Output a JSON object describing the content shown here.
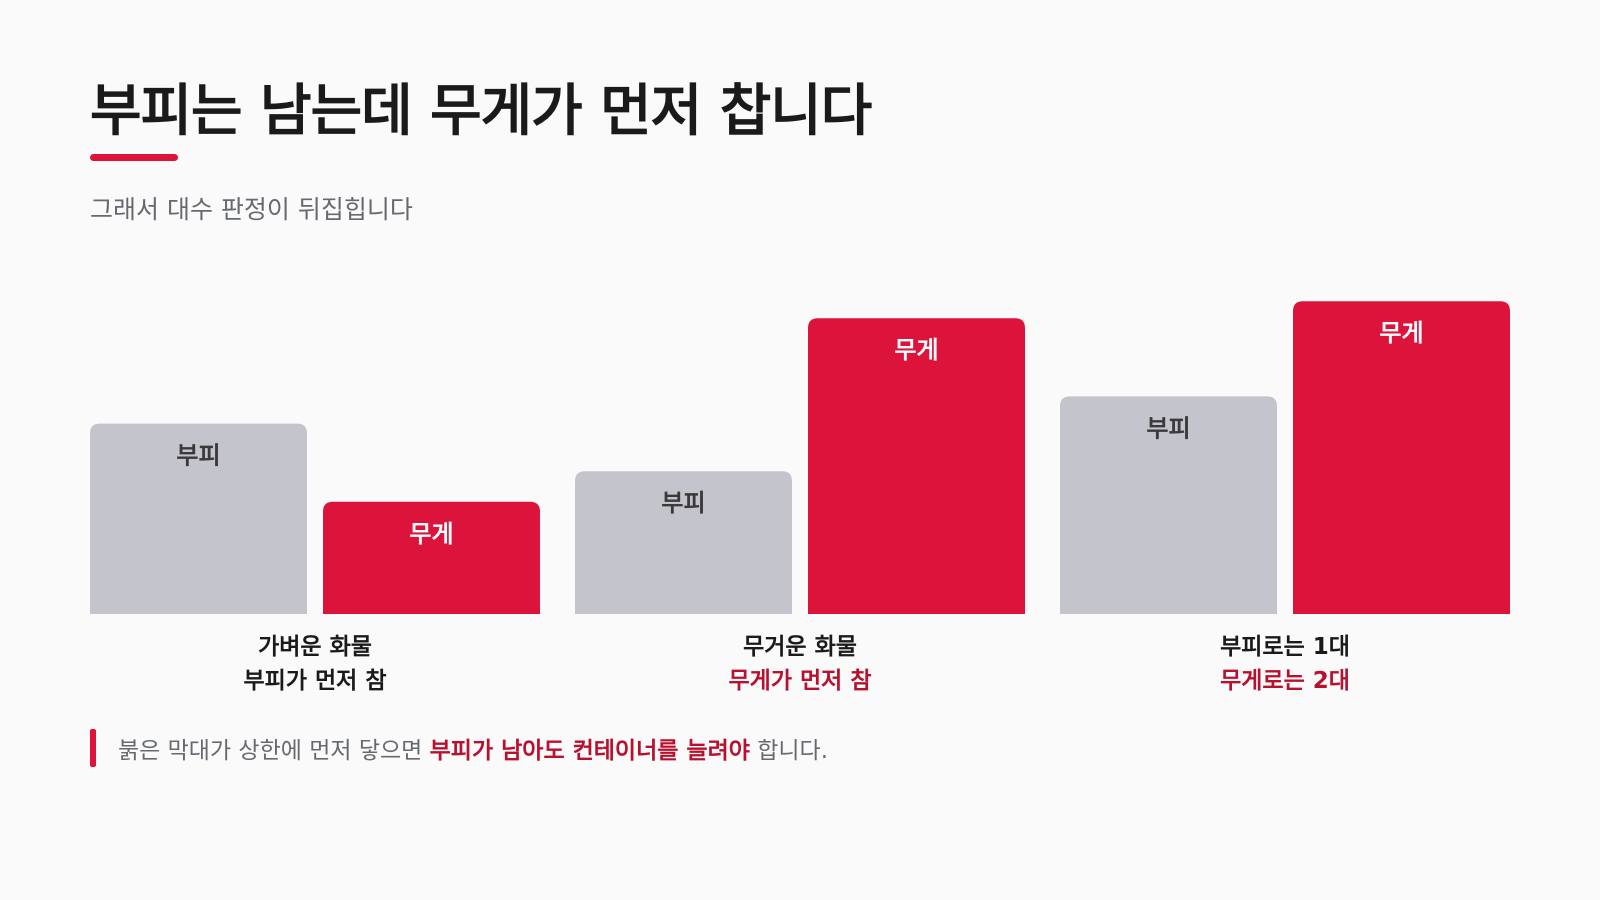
{
  "title": "부피는 남는데 무게가 먼저 찹니다",
  "subtitle": "그래서 대수 판정이 뒤집힙니다",
  "colors": {
    "accent": "#dc143c",
    "accent_text": "#b8112f",
    "volume_bar": "#c4c4cc",
    "weight_bar": "#dc143c",
    "volume_label": "#3a3a3a",
    "weight_label": "#ffffff",
    "muted_text": "#666a70"
  },
  "chart_data": {
    "type": "bar",
    "categories": [
      "가벼운 화물 / 부피가 먼저 참",
      "무거운 화물 / 무게가 먼저 참",
      "부피로는 1대 / 무게로는 2대"
    ],
    "series": [
      {
        "name": "부피",
        "values": [
          0.56,
          0.42,
          0.64
        ]
      },
      {
        "name": "무게",
        "values": [
          0.33,
          0.87,
          0.92
        ]
      }
    ],
    "ylim": [
      0,
      1
    ],
    "groups": [
      {
        "line1": "가벼운 화물",
        "line2": "부피가 먼저 참",
        "line2_highlight": false
      },
      {
        "line1": "무거운 화물",
        "line2": "무게가 먼저 참",
        "line2_highlight": true
      },
      {
        "line1": "부피로는 1대",
        "line2": "무게로는 2대",
        "line2_highlight": true
      }
    ]
  },
  "note": {
    "prefix": "붉은 막대가 상한에 먼저 닿으면 ",
    "highlight": "부피가 남아도 컨테이너를 늘려야",
    "suffix": " 합니다."
  }
}
